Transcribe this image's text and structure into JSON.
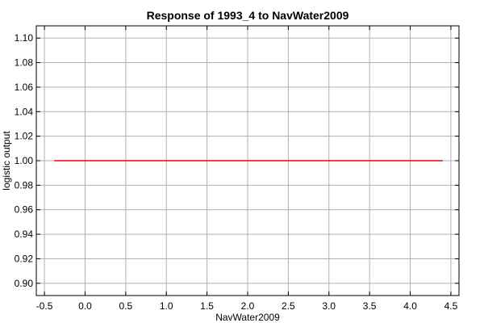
{
  "chart_data": {
    "type": "line",
    "title": "Response of 1993_4 to NavWater2009",
    "xlabel": "NavWater2009",
    "ylabel": "logistic output",
    "xlim": [
      -0.6,
      4.6
    ],
    "ylim": [
      0.89,
      1.11
    ],
    "x_ticks": [
      -0.5,
      0.0,
      0.5,
      1.0,
      1.5,
      2.0,
      2.5,
      3.0,
      3.5,
      4.0,
      4.5
    ],
    "x_tick_labels": [
      "-0.5",
      "0.0",
      "0.5",
      "1.0",
      "1.5",
      "2.0",
      "2.5",
      "3.0",
      "3.5",
      "4.0",
      "4.5"
    ],
    "y_ticks": [
      0.9,
      0.92,
      0.94,
      0.96,
      0.98,
      1.0,
      1.02,
      1.04,
      1.06,
      1.08,
      1.1
    ],
    "y_tick_labels": [
      "0.90",
      "0.92",
      "0.94",
      "0.96",
      "0.98",
      "1.00",
      "1.02",
      "1.04",
      "1.06",
      "1.08",
      "1.10"
    ],
    "grid": true,
    "series": [
      {
        "color": "#ff0000",
        "x": [
          -0.38,
          4.4
        ],
        "y": [
          1.0,
          1.0
        ]
      }
    ]
  }
}
